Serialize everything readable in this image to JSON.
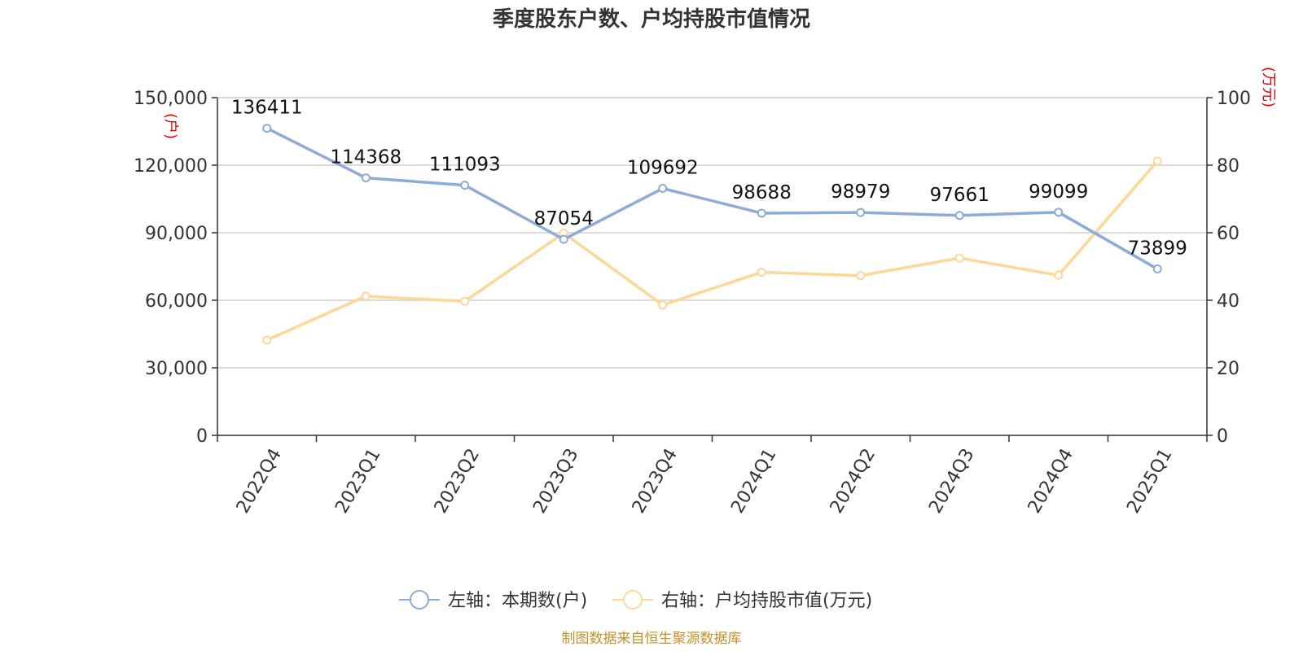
{
  "chart_data": {
    "type": "line",
    "title": "季度股东户数、户均持股市值情况",
    "categories": [
      "2022Q4",
      "2023Q1",
      "2023Q2",
      "2023Q3",
      "2023Q4",
      "2024Q1",
      "2024Q2",
      "2024Q3",
      "2024Q4",
      "2025Q1"
    ],
    "y_left": {
      "unit": "(户)",
      "ticks": [
        "0",
        "30,000",
        "60,000",
        "90,000",
        "120,000",
        "150,000"
      ],
      "ylim": [
        0,
        150000
      ]
    },
    "y_right": {
      "unit": "(万元)",
      "ticks": [
        "0",
        "20",
        "40",
        "60",
        "80",
        "100"
      ],
      "ylim": [
        0,
        100
      ]
    },
    "series": [
      {
        "name": "左轴：本期数(户)",
        "axis": "left",
        "color": "#8eaadb",
        "values": [
          136411,
          114368,
          111093,
          87054,
          109692,
          98688,
          98979,
          97661,
          99099,
          73899
        ],
        "labels": [
          "136411",
          "114368",
          "111093",
          "87054",
          "109692",
          "98688",
          "98979",
          "97661",
          "99099",
          "73899"
        ]
      },
      {
        "name": "右轴：户均持股市值(万元)",
        "axis": "right",
        "color": "#fcd898",
        "values": [
          28.2,
          41.2,
          39.7,
          59.9,
          38.6,
          48.3,
          47.3,
          52.5,
          47.4,
          81.2
        ]
      }
    ],
    "grid": true,
    "legend_position": "bottom"
  },
  "footer": {
    "source": "制图数据来自恒生聚源数据库"
  }
}
